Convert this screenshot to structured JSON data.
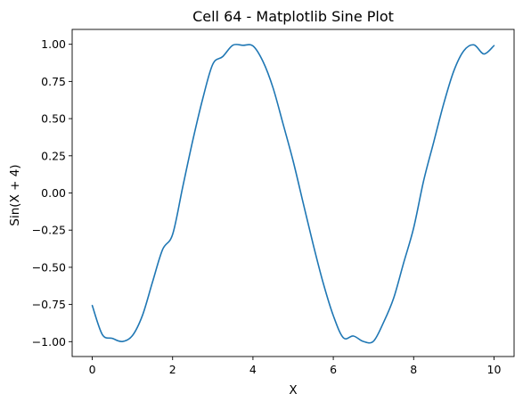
{
  "chart_data": {
    "type": "line",
    "title": "Cell 64 - Matplotlib Sine Plot",
    "xlabel": "X",
    "ylabel": "Sin(X + 4)",
    "xlim": [
      -0.5,
      10.5
    ],
    "ylim": [
      -1.1,
      1.1
    ],
    "xticks": [
      0,
      2,
      4,
      6,
      8,
      10
    ],
    "xtick_labels": [
      "0",
      "2",
      "4",
      "6",
      "8",
      "10"
    ],
    "yticks": [
      -1.0,
      -0.75,
      -0.5,
      -0.25,
      0.0,
      0.25,
      0.5,
      0.75,
      1.0
    ],
    "ytick_labels": [
      "−1.00",
      "−0.75",
      "−0.50",
      "−0.25",
      "0.00",
      "0.25",
      "0.50",
      "0.75",
      "1.00"
    ],
    "grid": false,
    "legend": false,
    "series": [
      {
        "color": "#1f77b4",
        "x": [
          0.0,
          0.25,
          0.5,
          0.75,
          1.0,
          1.25,
          1.5,
          1.75,
          2.0,
          2.25,
          2.5,
          2.75,
          3.0,
          3.25,
          3.5,
          3.75,
          4.0,
          4.25,
          4.5,
          4.75,
          5.0,
          5.25,
          5.5,
          5.75,
          6.0,
          6.25,
          6.5,
          6.75,
          7.0,
          7.25,
          7.5,
          7.75,
          8.0,
          8.25,
          8.5,
          8.75,
          9.0,
          9.25,
          9.5,
          9.75,
          10.0
        ],
        "y": [
          -0.757,
          -0.952,
          -0.978,
          -0.999,
          -0.959,
          -0.823,
          -0.599,
          -0.381,
          -0.279,
          0.038,
          0.351,
          0.634,
          0.866,
          0.918,
          0.994,
          0.993,
          0.989,
          0.884,
          0.707,
          0.464,
          0.215,
          -0.067,
          -0.347,
          -0.607,
          -0.825,
          -0.974,
          -0.962,
          -0.999,
          -0.997,
          -0.871,
          -0.709,
          -0.471,
          -0.235,
          0.084,
          0.343,
          0.602,
          0.821,
          0.957,
          0.996,
          0.935,
          0.991
        ]
      }
    ]
  }
}
